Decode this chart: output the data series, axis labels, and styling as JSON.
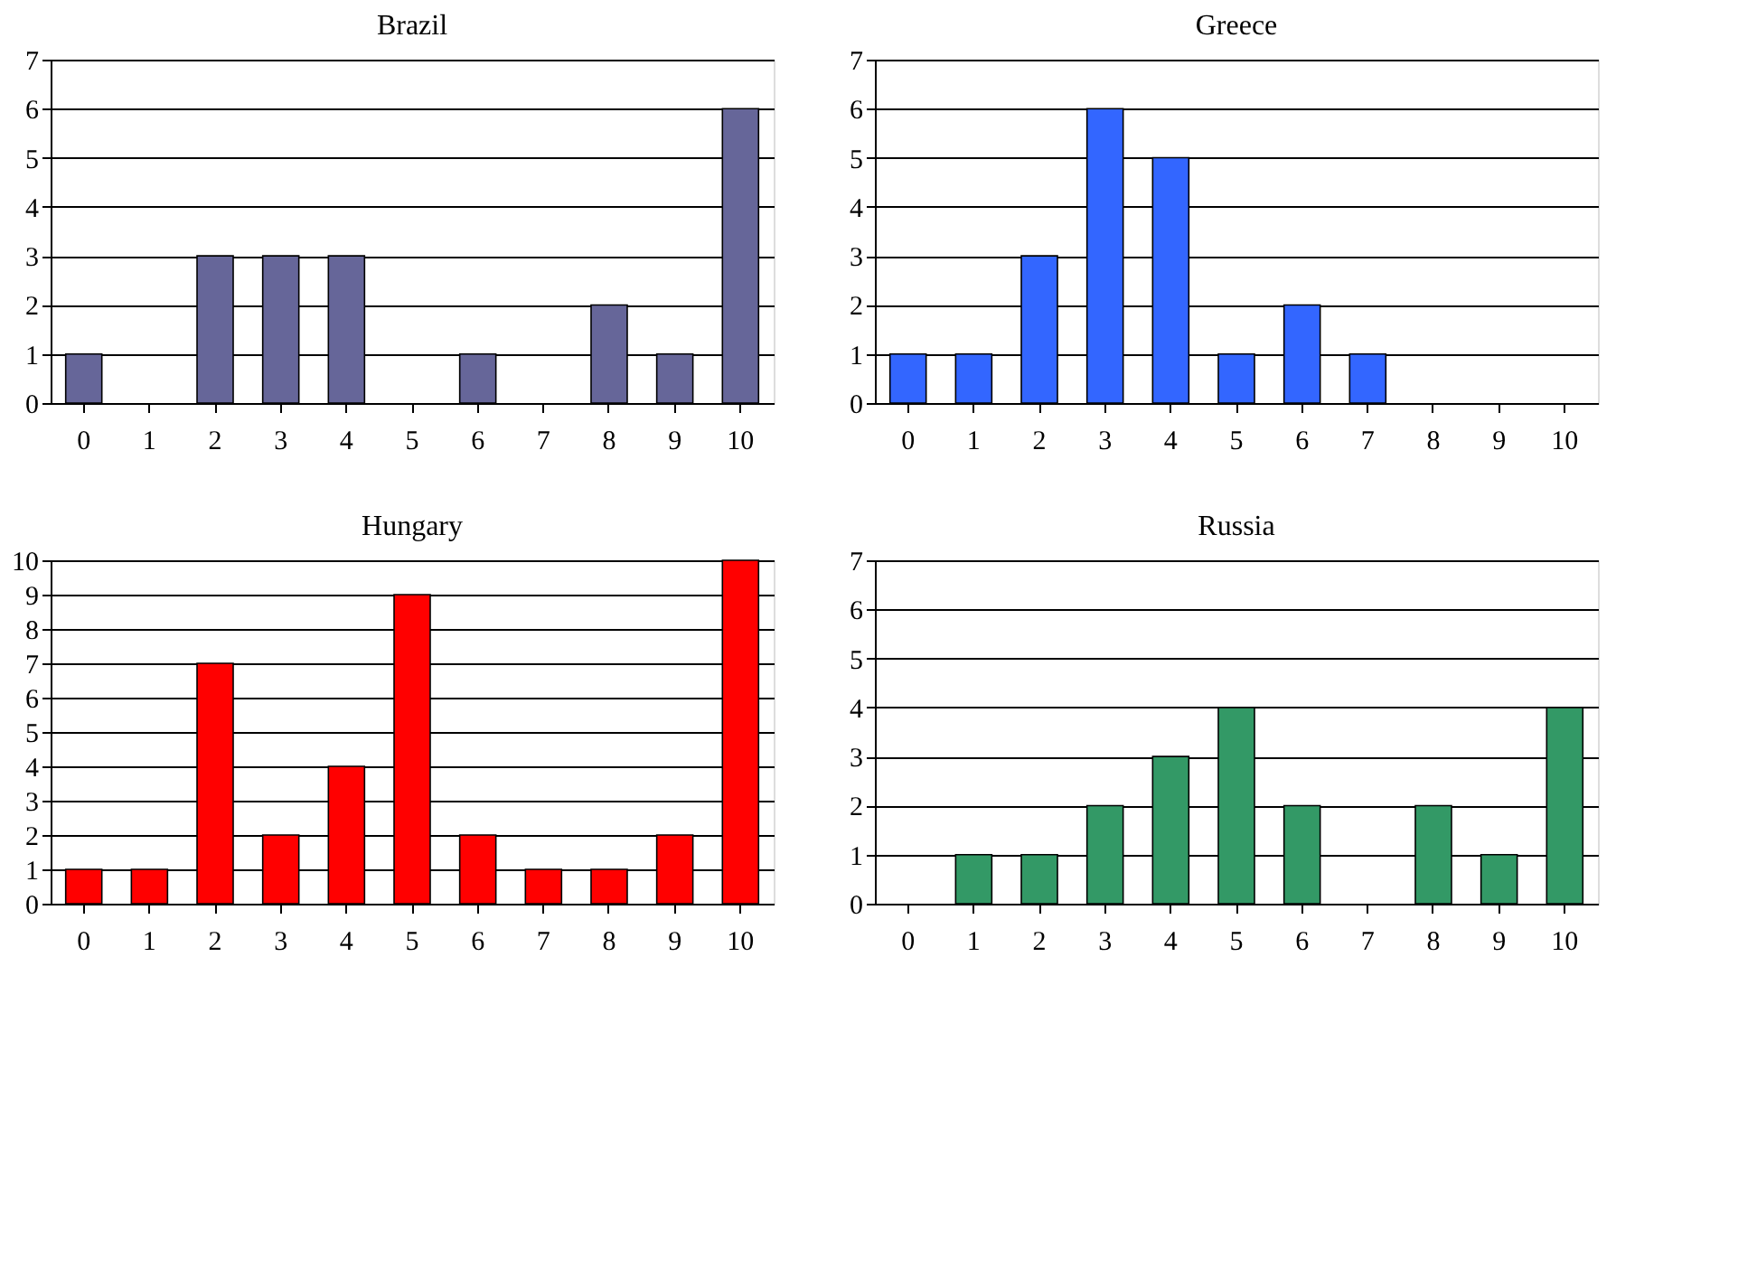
{
  "chart_data": [
    {
      "type": "bar",
      "title": "Brazil",
      "categories": [
        "0",
        "1",
        "2",
        "3",
        "4",
        "5",
        "6",
        "7",
        "8",
        "9",
        "10"
      ],
      "values": [
        1,
        0,
        3,
        3,
        3,
        0,
        1,
        0,
        2,
        1,
        6
      ],
      "color": "#666699",
      "ylim": [
        0,
        7
      ],
      "yticks": [
        0,
        1,
        2,
        3,
        4,
        5,
        6,
        7
      ],
      "grid": "y"
    },
    {
      "type": "bar",
      "title": "Greece",
      "categories": [
        "0",
        "1",
        "2",
        "3",
        "4",
        "5",
        "6",
        "7",
        "8",
        "9",
        "10"
      ],
      "values": [
        1,
        1,
        3,
        6,
        5,
        1,
        2,
        1,
        0,
        0,
        0
      ],
      "color": "#3366ff",
      "ylim": [
        0,
        7
      ],
      "yticks": [
        0,
        1,
        2,
        3,
        4,
        5,
        6,
        7
      ],
      "grid": "y"
    },
    {
      "type": "bar",
      "title": "Hungary",
      "categories": [
        "0",
        "1",
        "2",
        "3",
        "4",
        "5",
        "6",
        "7",
        "8",
        "9",
        "10"
      ],
      "values": [
        1,
        1,
        7,
        2,
        4,
        9,
        2,
        1,
        1,
        2,
        10
      ],
      "color": "#ff0000",
      "ylim": [
        0,
        10
      ],
      "yticks": [
        0,
        1,
        2,
        3,
        4,
        5,
        6,
        7,
        8,
        9,
        10
      ],
      "grid": "y"
    },
    {
      "type": "bar",
      "title": "Russia",
      "categories": [
        "0",
        "1",
        "2",
        "3",
        "4",
        "5",
        "6",
        "7",
        "8",
        "9",
        "10"
      ],
      "values": [
        0,
        1,
        1,
        2,
        3,
        4,
        2,
        0,
        2,
        1,
        4
      ],
      "color": "#339966",
      "ylim": [
        0,
        7
      ],
      "yticks": [
        0,
        1,
        2,
        3,
        4,
        5,
        6,
        7
      ],
      "grid": "y"
    }
  ]
}
